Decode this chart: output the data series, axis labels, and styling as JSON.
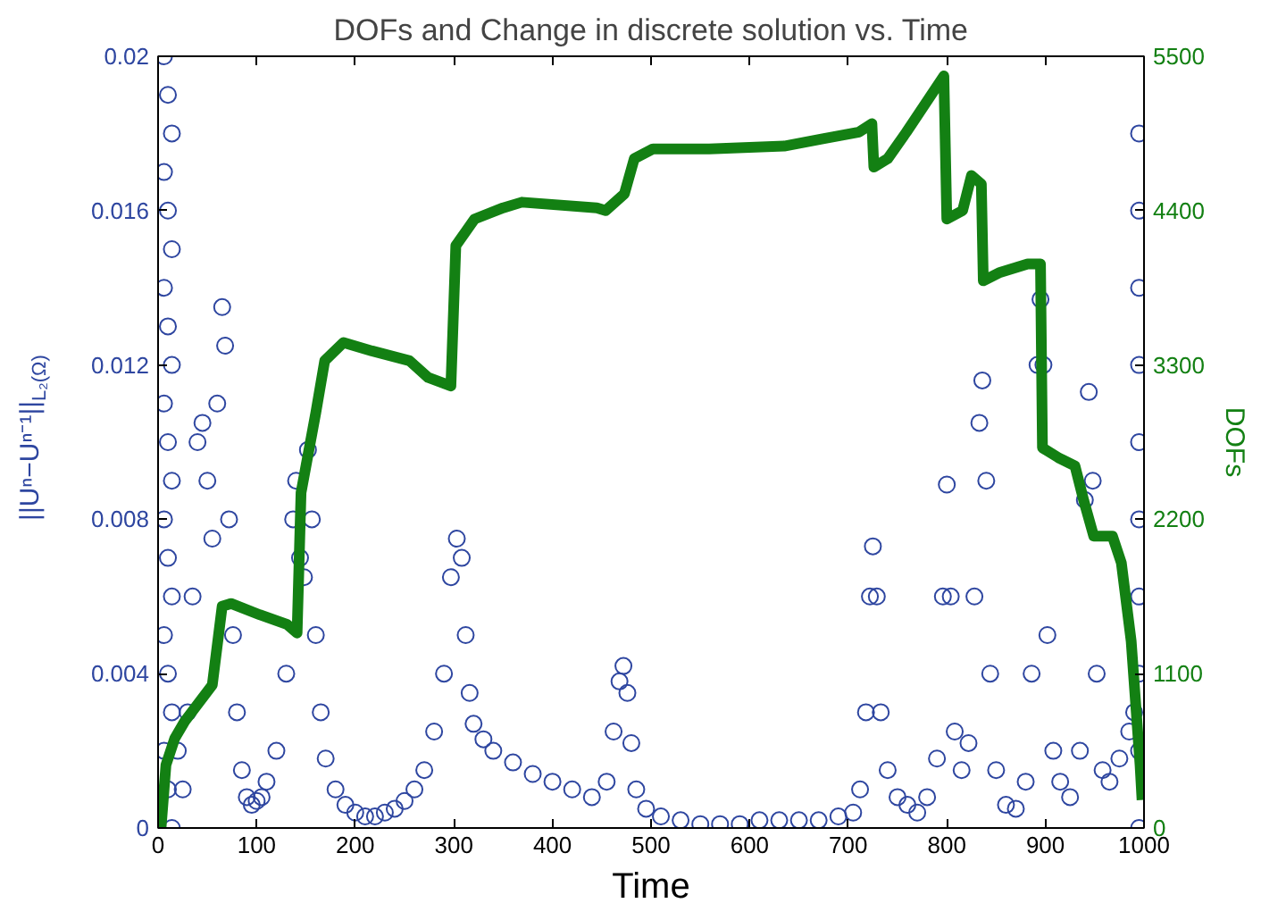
{
  "chart_data": {
    "type": "scatter",
    "title": "DOFs and Change in discrete solution vs. Time",
    "xlabel": "Time",
    "ylabel": "||Uⁿ−Uⁿ⁻¹||$_{L₂(Ω)}$",
    "y2label": "DOFs",
    "xlim": [
      0,
      1000
    ],
    "xticks": [
      0,
      100,
      200,
      300,
      400,
      500,
      600,
      700,
      800,
      900,
      1000
    ],
    "ylim": [
      0,
      0.02
    ],
    "yticks": [
      0,
      0.004,
      0.008,
      0.012,
      0.016,
      0.02
    ],
    "y2lim": [
      0,
      5500
    ],
    "y2ticks": [
      0,
      1100,
      2200,
      3300,
      4400,
      5500
    ],
    "grid": false,
    "series": [
      {
        "color": "#2e46a0",
        "marker": "circle",
        "x": [
          6,
          10,
          14,
          6,
          10,
          14,
          6,
          10,
          14,
          6,
          10,
          14,
          6,
          10,
          14,
          6,
          10,
          14,
          6,
          10,
          14,
          20,
          25,
          30,
          35,
          40,
          45,
          50,
          55,
          60,
          65,
          68,
          72,
          76,
          80,
          85,
          90,
          95,
          100,
          105,
          110,
          120,
          130,
          137,
          140,
          144,
          148,
          152,
          156,
          160,
          165,
          170,
          180,
          190,
          200,
          210,
          220,
          230,
          240,
          250,
          260,
          270,
          280,
          290,
          297,
          303,
          308,
          312,
          316,
          320,
          330,
          340,
          360,
          380,
          400,
          420,
          440,
          455,
          462,
          468,
          472,
          476,
          480,
          485,
          495,
          510,
          530,
          550,
          570,
          590,
          610,
          630,
          650,
          670,
          690,
          705,
          712,
          718,
          722,
          725,
          729,
          733,
          740,
          750,
          760,
          770,
          780,
          790,
          796,
          800,
          804,
          808,
          815,
          822,
          828,
          833,
          836,
          840,
          844,
          850,
          860,
          870,
          880,
          886,
          892,
          895,
          898,
          902,
          908,
          915,
          925,
          935,
          940,
          944,
          948,
          952,
          958,
          965,
          975,
          985,
          990,
          995,
          995,
          995,
          995,
          995,
          995,
          995,
          995,
          995,
          995
        ],
        "values": [
          0.02,
          0.019,
          0.018,
          0.017,
          0.016,
          0.015,
          0.014,
          0.013,
          0.012,
          0.011,
          0.01,
          0.009,
          0.008,
          0.007,
          0.006,
          0.005,
          0.004,
          0.003,
          0.002,
          0.001,
          0,
          0.002,
          0.001,
          0.003,
          0.006,
          0.01,
          0.0105,
          0.009,
          0.0075,
          0.011,
          0.0135,
          0.0125,
          0.008,
          0.005,
          0.003,
          0.0015,
          0.0008,
          0.0006,
          0.0007,
          0.0008,
          0.0012,
          0.002,
          0.004,
          0.008,
          0.009,
          0.007,
          0.0065,
          0.0098,
          0.008,
          0.005,
          0.003,
          0.0018,
          0.001,
          0.0006,
          0.0004,
          0.0003,
          0.0003,
          0.0004,
          0.0005,
          0.0007,
          0.001,
          0.0015,
          0.0025,
          0.004,
          0.0065,
          0.0075,
          0.007,
          0.005,
          0.0035,
          0.0027,
          0.0023,
          0.002,
          0.0017,
          0.0014,
          0.0012,
          0.001,
          0.0008,
          0.0012,
          0.0025,
          0.0038,
          0.0042,
          0.0035,
          0.0022,
          0.001,
          0.0005,
          0.0003,
          0.0002,
          0.0001,
          0.0001,
          0.0001,
          0.0002,
          0.0002,
          0.0002,
          0.0002,
          0.0003,
          0.0004,
          0.001,
          0.003,
          0.006,
          0.0073,
          0.006,
          0.003,
          0.0015,
          0.0008,
          0.0006,
          0.0004,
          0.0008,
          0.0018,
          0.006,
          0.0089,
          0.006,
          0.0025,
          0.0015,
          0.0022,
          0.006,
          0.0105,
          0.0116,
          0.009,
          0.004,
          0.0015,
          0.0006,
          0.0005,
          0.0012,
          0.004,
          0.012,
          0.0137,
          0.012,
          0.005,
          0.002,
          0.0012,
          0.0008,
          0.002,
          0.0085,
          0.0113,
          0.009,
          0.004,
          0.0015,
          0.0012,
          0.0018,
          0.0025,
          0.003,
          0.018,
          0.016,
          0.014,
          0.012,
          0.01,
          0.008,
          0.006,
          0.004,
          0.002,
          0
        ]
      },
      {
        "type": "line",
        "axis": "y2",
        "color": "#138013",
        "x": [
          3,
          8,
          17,
          27,
          55,
          65,
          74,
          103,
          131,
          141,
          145,
          160,
          169,
          188,
          217,
          255,
          274,
          297,
          302,
          321,
          350,
          369,
          445,
          454,
          473,
          483,
          502,
          559,
          635,
          673,
          711,
          724,
          726,
          740,
          759,
          797,
          800,
          816,
          825,
          835,
          837,
          854,
          882,
          895,
          897,
          913,
          930,
          939,
          949,
          968,
          977,
          987,
          996,
          998
        ],
        "values": [
          0,
          450,
          640,
          760,
          1020,
          1580,
          1600,
          1520,
          1450,
          1390,
          2390,
          2960,
          3330,
          3460,
          3400,
          3330,
          3210,
          3150,
          4150,
          4340,
          4420,
          4460,
          4420,
          4400,
          4520,
          4770,
          4840,
          4840,
          4860,
          4910,
          4960,
          5020,
          4710,
          4770,
          4960,
          5360,
          4340,
          4400,
          4650,
          4590,
          3900,
          3960,
          4020,
          4020,
          2710,
          2640,
          2580,
          2330,
          2080,
          2080,
          1890,
          1330,
          450,
          200
        ]
      }
    ]
  }
}
